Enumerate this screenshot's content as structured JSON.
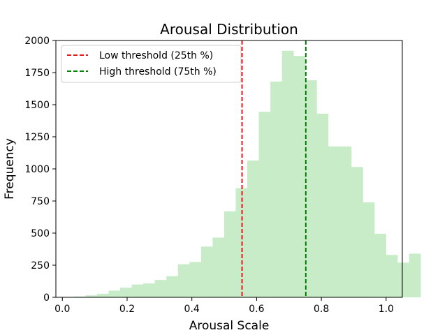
{
  "chart_data": {
    "type": "bar",
    "title": "Arousal Distribution",
    "xlabel": "Arousal Scale",
    "ylabel": "Frequency",
    "xlim": [
      -0.02,
      1.05
    ],
    "ylim": [
      0,
      2000
    ],
    "xticks": [
      0.0,
      0.2,
      0.4,
      0.6,
      0.8,
      1.0
    ],
    "xtick_labels": [
      "0.0",
      "0.2",
      "0.4",
      "0.6",
      "0.8",
      "1.0"
    ],
    "yticks": [
      0,
      250,
      500,
      750,
      1000,
      1250,
      1500,
      1750,
      2000
    ],
    "ytick_labels": [
      "0",
      "250",
      "500",
      "750",
      "1000",
      "1250",
      "1500",
      "1750",
      "2000"
    ],
    "grid": false,
    "legend_position": "top-left",
    "bar_color": "#c8ecc8",
    "bins": {
      "start": 0.0,
      "width": 0.0357,
      "values": [
        2,
        6,
        15,
        28,
        52,
        75,
        100,
        108,
        135,
        165,
        258,
        275,
        395,
        465,
        670,
        850,
        1065,
        1445,
        1680,
        1920,
        1880,
        1690,
        1430,
        1175,
        1175,
        1015,
        740,
        495,
        330,
        270,
        340
      ]
    },
    "thresholds": [
      {
        "name": "Low threshold (25th %)",
        "x": 0.555,
        "color": "#e31a1c"
      },
      {
        "name": "High threshold (75th %)",
        "x": 0.752,
        "color": "#008000"
      }
    ]
  }
}
